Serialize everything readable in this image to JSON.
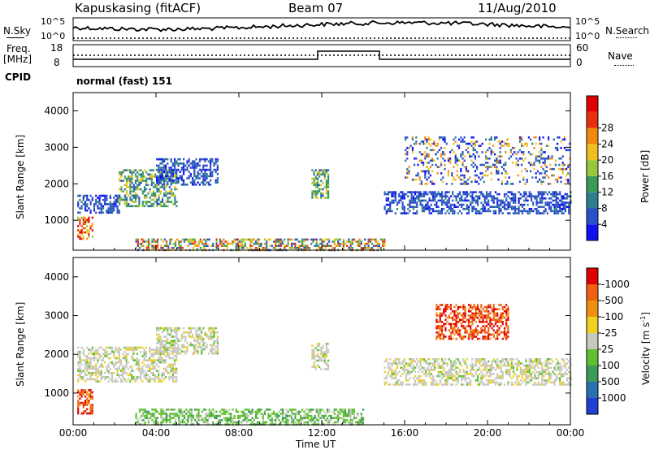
{
  "header": {
    "station": "Kapuskasing (fitACF)",
    "beam": "Beam 07",
    "date": "11/Aug/2010"
  },
  "nsky_panel": {
    "left_label": "N.Sky",
    "right_label": "N.Search",
    "ticks_left": [
      "10^5",
      "10^0"
    ],
    "ticks_right": [
      "10^5",
      "10^0"
    ]
  },
  "freq_panel": {
    "left_label_1": "Freq.",
    "left_label_2": "[MHz]",
    "right_label": "Nave",
    "ticks_left": [
      "18",
      "8"
    ],
    "ticks_right": [
      "60",
      "0"
    ]
  },
  "cpid": {
    "label": "CPID",
    "value": "normal (fast) 151"
  },
  "chart_data": [
    {
      "type": "heatmap",
      "title": "",
      "xlabel": "",
      "ylabel": "Slant Range [km]",
      "x_ticks": [
        "00:00",
        "04:00",
        "08:00",
        "12:00",
        "16:00",
        "20:00",
        "00:00"
      ],
      "y_ticks": [
        "1000",
        "2000",
        "3000",
        "4000"
      ],
      "ylim": [
        180,
        4500
      ],
      "colorbar": {
        "label": "Power [dB]",
        "ticks": [
          "4",
          "8",
          "12",
          "16",
          "20",
          "24",
          "28"
        ],
        "colors": [
          "#1010ee",
          "#2a4fc8",
          "#2d7f8f",
          "#3a9a5a",
          "#98c83a",
          "#f0c020",
          "#f08a10",
          "#e83010",
          "#e00000"
        ]
      },
      "echo_regions": [
        {
          "t_start": 0.2,
          "t_end": 2.2,
          "r_low": 1200,
          "r_high": 1700,
          "level": "low"
        },
        {
          "t_start": 2.2,
          "t_end": 5.0,
          "r_low": 1400,
          "r_high": 2400,
          "level": "medium"
        },
        {
          "t_start": 4.0,
          "t_end": 7.0,
          "r_low": 2000,
          "r_high": 2700,
          "level": "low"
        },
        {
          "t_start": 0.2,
          "t_end": 0.9,
          "r_low": 500,
          "r_high": 1100,
          "level": "high"
        },
        {
          "t_start": 3.0,
          "t_end": 15.0,
          "r_low": 180,
          "r_high": 500,
          "level": "mixed"
        },
        {
          "t_start": 11.5,
          "t_end": 12.3,
          "r_low": 1600,
          "r_high": 2400,
          "level": "medium"
        },
        {
          "t_start": 15.0,
          "t_end": 24.0,
          "r_low": 1200,
          "r_high": 1800,
          "level": "low"
        },
        {
          "t_start": 16.0,
          "t_end": 24.0,
          "r_low": 2000,
          "r_high": 3300,
          "level": "sparse"
        }
      ]
    },
    {
      "type": "heatmap",
      "title": "",
      "xlabel": "Time UT",
      "ylabel": "Slant Range [km]",
      "x_ticks": [
        "00:00",
        "04:00",
        "08:00",
        "12:00",
        "16:00",
        "20:00",
        "00:00"
      ],
      "y_ticks": [
        "1000",
        "2000",
        "3000",
        "4000"
      ],
      "ylim": [
        180,
        4500
      ],
      "colorbar": {
        "label": "Velocity [m s",
        "label_superscript": "-1",
        "label_close": "]",
        "ticks": [
          "1000",
          "500",
          "100",
          "25",
          "-25",
          "-100",
          "-500",
          "-1000"
        ],
        "colors": [
          "#2040d0",
          "#2a6fb0",
          "#3a9a5a",
          "#60c030",
          "#c8c8c0",
          "#f0d020",
          "#f09010",
          "#f06010",
          "#e00000"
        ]
      },
      "echo_regions": [
        {
          "t_start": 0.2,
          "t_end": 0.9,
          "r_low": 500,
          "r_high": 1100,
          "level": "away_fast"
        },
        {
          "t_start": 0.2,
          "t_end": 5.0,
          "r_low": 1300,
          "r_high": 2200,
          "level": "near_zero"
        },
        {
          "t_start": 4.0,
          "t_end": 7.0,
          "r_low": 2000,
          "r_high": 2700,
          "level": "near_zero"
        },
        {
          "t_start": 3.0,
          "t_end": 14.0,
          "r_low": 180,
          "r_high": 600,
          "level": "toward_slow"
        },
        {
          "t_start": 11.5,
          "t_end": 12.3,
          "r_low": 1600,
          "r_high": 2300,
          "level": "near_zero"
        },
        {
          "t_start": 15.0,
          "t_end": 24.0,
          "r_low": 1200,
          "r_high": 1900,
          "level": "near_zero"
        },
        {
          "t_start": 17.5,
          "t_end": 21.0,
          "r_low": 2400,
          "r_high": 3300,
          "level": "away_fast"
        }
      ]
    }
  ]
}
